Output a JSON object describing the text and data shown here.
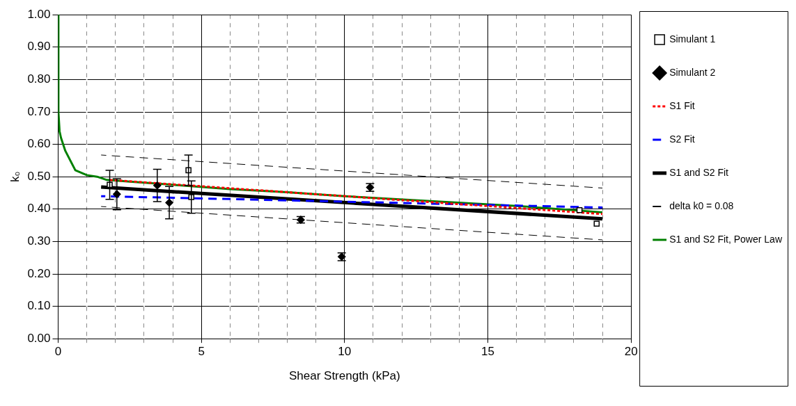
{
  "chart_data": {
    "type": "scatter",
    "xlabel": "Shear Strength (kPa)",
    "ylabel": "k₀",
    "xlim": [
      0,
      20
    ],
    "ylim": [
      0,
      1
    ],
    "xticks": [
      0,
      {
        "value": 1,
        "label": null
      },
      {
        "value": 2,
        "label": null
      },
      {
        "value": 3,
        "label": null
      },
      {
        "value": 4,
        "label": null
      },
      5,
      {
        "value": 6,
        "label": null
      },
      {
        "value": 7,
        "label": null
      },
      {
        "value": 8,
        "label": null
      },
      {
        "value": 9,
        "label": null
      },
      10,
      {
        "value": 11,
        "label": null
      },
      {
        "value": 12,
        "label": null
      },
      {
        "value": 13,
        "label": null
      },
      {
        "value": 14,
        "label": null
      },
      15,
      {
        "value": 16,
        "label": null
      },
      {
        "value": 17,
        "label": null
      },
      {
        "value": 18,
        "label": null
      },
      {
        "value": 19,
        "label": null
      },
      20
    ],
    "yticks": [
      {
        "value": 0,
        "label": "0.00"
      },
      {
        "value": 0.1,
        "label": "0.10"
      },
      {
        "value": 0.2,
        "label": "0.20"
      },
      {
        "value": 0.3,
        "label": "0.30"
      },
      {
        "value": 0.4,
        "label": "0.40"
      },
      {
        "value": 0.5,
        "label": "0.50"
      },
      {
        "value": 0.6,
        "label": "0.60"
      },
      {
        "value": 0.7,
        "label": "0.70"
      },
      {
        "value": 0.8,
        "label": "0.80"
      },
      {
        "value": 0.9,
        "label": "0.90"
      },
      {
        "value": 1,
        "label": "1.00"
      }
    ],
    "grid": true,
    "legend": "right",
    "series": [
      {
        "name": "Simulant 1",
        "marker": "square",
        "color": "#000000",
        "x": [
          1.8,
          4.55,
          4.65,
          18.2,
          18.8
        ],
        "values": [
          0.475,
          0.52,
          0.437,
          0.397,
          0.355
        ],
        "errors": [
          0.045,
          0.047,
          0.05,
          null,
          null
        ]
      },
      {
        "name": "Simulant 2",
        "marker": "diamond",
        "color": "#000000",
        "x": [
          2.05,
          3.46,
          3.88,
          8.47,
          9.9,
          10.89
        ],
        "values": [
          0.446,
          0.473,
          0.42,
          0.367,
          0.253,
          0.467
        ],
        "errors": [
          0.048,
          0.05,
          0.05,
          0.01,
          0.012,
          0.012
        ]
      },
      {
        "name": "S1 Fit",
        "type": "line",
        "marker": "none",
        "line_style": "dotted",
        "color": "#ff0000",
        "x": [
          1.8,
          19
        ],
        "values": [
          0.49,
          0.385
        ]
      },
      {
        "name": "S2 Fit",
        "type": "line",
        "marker": "none",
        "line_style": "dashed",
        "color": "#0000ff",
        "x": [
          1.5,
          19
        ],
        "values": [
          0.44,
          0.405
        ]
      },
      {
        "name": "S1 and S2 Fit",
        "type": "line",
        "marker": "none",
        "line_style": "solid",
        "color": "#000000",
        "x": [
          1.5,
          19
        ],
        "values": [
          0.468,
          0.37
        ]
      },
      {
        "name": "delta k0 = 0.08",
        "type": "line",
        "marker": "none",
        "line_style": "dashed",
        "color": "#000000",
        "x": [
          1.5,
          19
        ],
        "values": [
          0.567,
          0.465
        ]
      },
      {
        "type": "line",
        "marker": "none",
        "line_style": "dashed",
        "color": "#000000",
        "x": [
          1.5,
          19
        ],
        "values": [
          0.408,
          0.305
        ]
      },
      {
        "name": "S1 and S2 Fit, Power Law",
        "type": "line",
        "marker": "none",
        "line_style": "solid",
        "color": "#008000",
        "x": [
          0.001,
          0.01,
          0.05,
          0.1,
          0.25,
          0.6,
          1.0,
          1.36,
          1.7,
          2.5,
          4,
          6,
          8,
          10,
          13,
          16,
          19
        ],
        "values": [
          1.0,
          0.7,
          0.64,
          0.62,
          0.58,
          0.52,
          0.505,
          0.5,
          0.49,
          0.485,
          0.475,
          0.462,
          0.452,
          0.44,
          0.425,
          0.41,
          0.39
        ]
      }
    ]
  }
}
